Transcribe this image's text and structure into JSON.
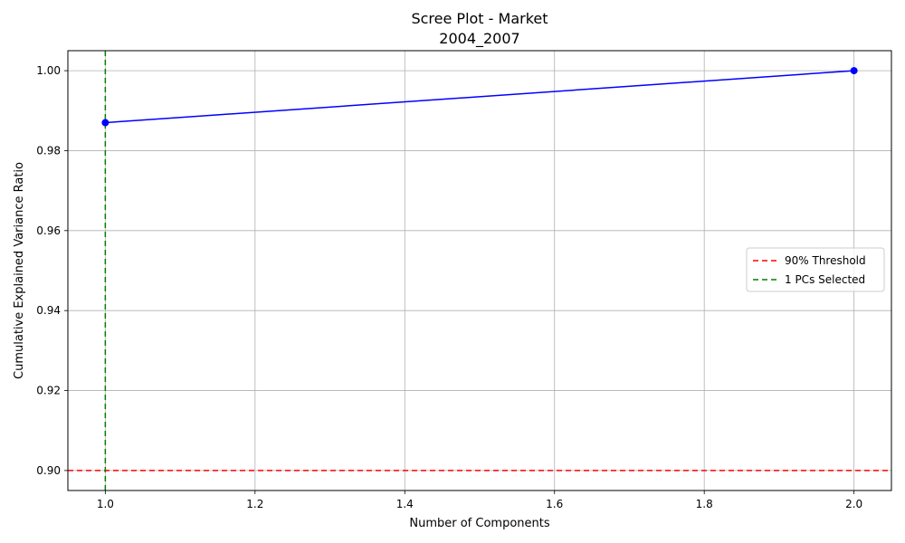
{
  "chart_data": {
    "type": "line",
    "title_lines": [
      "Scree Plot - Market",
      "2004_2007"
    ],
    "xlabel": "Number of Components",
    "ylabel": "Cumulative Explained Variance Ratio",
    "xlim": [
      0.95,
      2.05
    ],
    "ylim": [
      0.895,
      1.005
    ],
    "xticks": [
      1.0,
      1.2,
      1.4,
      1.6,
      1.8,
      2.0
    ],
    "xtick_labels": [
      "1.0",
      "1.2",
      "1.4",
      "1.6",
      "1.8",
      "2.0"
    ],
    "yticks": [
      0.9,
      0.92,
      0.94,
      0.96,
      0.98,
      1.0
    ],
    "ytick_labels": [
      "0.90",
      "0.92",
      "0.94",
      "0.96",
      "0.98",
      "1.00"
    ],
    "grid": true,
    "series": [
      {
        "x": [
          1,
          2
        ],
        "values": [
          0.987,
          1.0
        ],
        "color": "#0000ff",
        "marker": "circle"
      }
    ],
    "hlines": [
      {
        "y": 0.9,
        "color": "#ff0000",
        "style": "dashed"
      }
    ],
    "vlines": [
      {
        "x": 1,
        "color": "#008000",
        "style": "dashed"
      }
    ],
    "legend": {
      "placement": "center-right",
      "entries": [
        {
          "label": "90% Threshold",
          "color": "#ff0000",
          "style": "dashed"
        },
        {
          "label": "1 PCs Selected",
          "color": "#008000",
          "style": "dashed"
        }
      ]
    }
  }
}
